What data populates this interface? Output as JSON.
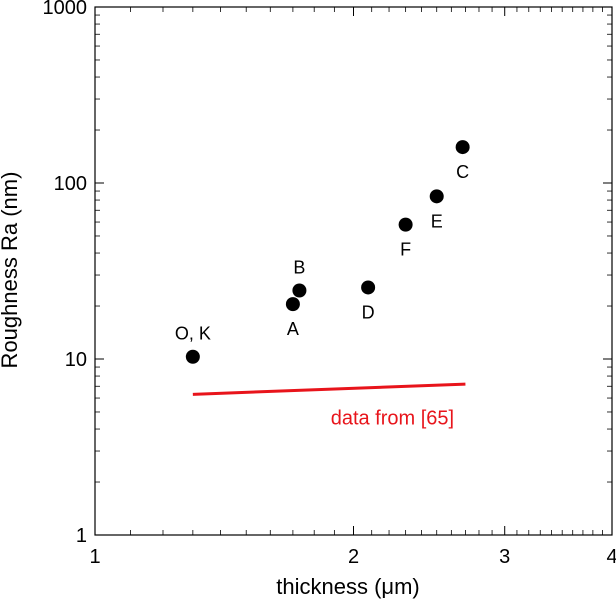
{
  "chart_data": {
    "type": "scatter",
    "title": "",
    "xlabel": "thickness (μm)",
    "ylabel": "Roughness Ra (nm)",
    "xscale": "log",
    "yscale": "log",
    "xlim": [
      1,
      4
    ],
    "ylim": [
      1,
      1000
    ],
    "xticks": [
      1,
      2,
      3,
      4
    ],
    "xtick_labels": [
      "1",
      "2",
      "3",
      "4"
    ],
    "yticks": [
      1,
      10,
      100,
      1000
    ],
    "ytick_labels": [
      "1",
      "10",
      "100",
      "1000"
    ],
    "grid": false,
    "points": [
      {
        "label": "O, K",
        "x": 1.3,
        "y": 10.3,
        "label_pos": "above"
      },
      {
        "label": "A",
        "x": 1.7,
        "y": 20.5,
        "label_pos": "below"
      },
      {
        "label": "B",
        "x": 1.73,
        "y": 24.5,
        "label_pos": "above"
      },
      {
        "label": "D",
        "x": 2.08,
        "y": 25.5,
        "label_pos": "below"
      },
      {
        "label": "F",
        "x": 2.3,
        "y": 58,
        "label_pos": "below"
      },
      {
        "label": "E",
        "x": 2.5,
        "y": 84,
        "label_pos": "below"
      },
      {
        "label": "C",
        "x": 2.68,
        "y": 160,
        "label_pos": "below"
      }
    ],
    "reference_line": {
      "label": "data from [65]",
      "color": "#e8141b",
      "x": [
        1.3,
        2.7
      ],
      "y": [
        6.3,
        7.2
      ]
    }
  }
}
